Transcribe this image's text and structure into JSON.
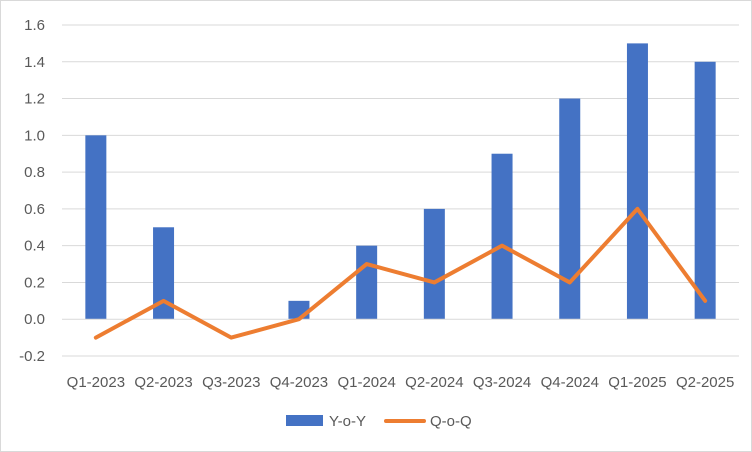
{
  "chart_data": {
    "type": "bar",
    "categories": [
      "Q1-2023",
      "Q2-2023",
      "Q3-2023",
      "Q4-2023",
      "Q1-2024",
      "Q2-2024",
      "Q3-2024",
      "Q4-2024",
      "Q1-2025",
      "Q2-2025"
    ],
    "series": [
      {
        "name": "Y-o-Y",
        "type": "bar",
        "color": "#4472C4",
        "values": [
          1.0,
          0.5,
          0.0,
          0.1,
          0.4,
          0.6,
          0.9,
          1.2,
          1.5,
          1.4
        ]
      },
      {
        "name": "Q-o-Q",
        "type": "line",
        "color": "#ED7D31",
        "values": [
          -0.1,
          0.1,
          -0.1,
          0.0,
          0.3,
          0.2,
          0.4,
          0.2,
          0.6,
          0.1
        ]
      }
    ],
    "y_ticks": [
      "-0.2",
      "0.0",
      "0.2",
      "0.4",
      "0.6",
      "0.8",
      "1.0",
      "1.2",
      "1.4",
      "1.6"
    ],
    "y_tick_values": [
      -0.2,
      0.0,
      0.2,
      0.4,
      0.6,
      0.8,
      1.0,
      1.2,
      1.4,
      1.6
    ],
    "ylim": [
      -0.2,
      1.6
    ],
    "title": "",
    "xlabel": "",
    "ylabel": "",
    "grid": "horizontal",
    "legend_position": "bottom"
  }
}
